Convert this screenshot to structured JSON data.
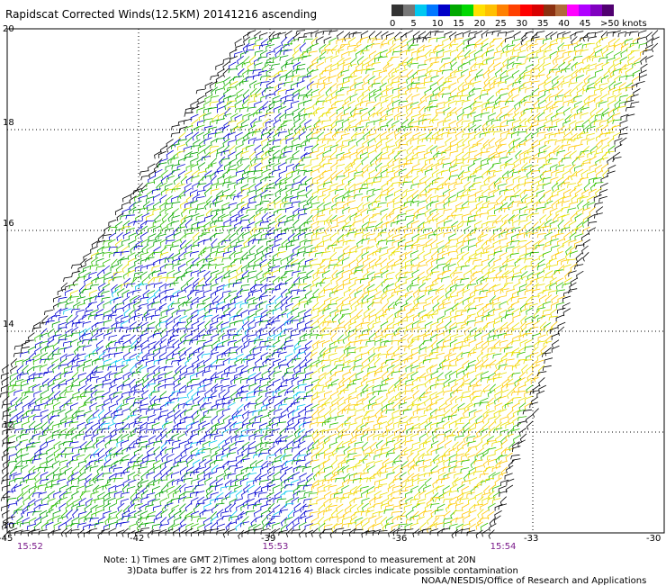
{
  "title": "Rapidscat Corrected Winds(12.5KM) 20141216 ascending",
  "legend": {
    "colors": [
      "#333333",
      "#777777",
      "#00c8f0",
      "#0077ff",
      "#0000c8",
      "#00a800",
      "#00d800",
      "#ffe000",
      "#ffc000",
      "#ff8000",
      "#ff4000",
      "#ff0000",
      "#d80000",
      "#8b3010",
      "#b06a3a",
      "#ff00ff",
      "#b000ff",
      "#8000c0",
      "#500070"
    ],
    "labels": [
      "0",
      "5",
      "10",
      "15",
      "20",
      "25",
      "30",
      "35",
      "40",
      "45",
      ">50 knots"
    ],
    "label_values": [
      0,
      5,
      10,
      15,
      20,
      25,
      30,
      35,
      40,
      45,
      50
    ]
  },
  "axes": {
    "lat_labels": [
      "20",
      "18",
      "16",
      "14",
      "12",
      "10"
    ],
    "lat_values": [
      20,
      18,
      16,
      14,
      12,
      10
    ],
    "lon_labels": [
      "-45",
      "-42",
      "-39",
      "-36",
      "-33",
      "-30"
    ],
    "lon_values": [
      -45,
      -42,
      -39,
      -36,
      -33,
      -30
    ]
  },
  "times": [
    {
      "label": "15:52",
      "lon": -45
    },
    {
      "label": "15:53",
      "lon": -39.4
    },
    {
      "label": "15:54",
      "lon": -34.2
    }
  ],
  "notes": {
    "line1": "Note: 1) Times are GMT 2)Times along bottom correspond to measurement at 20N",
    "line2": "3)Data buffer is 22 hrs from 20141216 4) Black circles indicate possible contamination",
    "line3": "NOAA/NESDIS/Office of Research and Applications"
  },
  "swath": {
    "corners": [
      [
        -39.5,
        20.0
      ],
      [
        -30.0,
        20.0
      ],
      [
        -33.8,
        10.0
      ],
      [
        -45.0,
        10.0
      ],
      [
        -45.0,
        13.3
      ]
    ]
  },
  "wind_field": {
    "zones": [
      {
        "name": "northwest",
        "lon_range": [
          -45,
          -38
        ],
        "lat_range": [
          14.5,
          20
        ],
        "speed_knots": 17,
        "direction": "northeasterly"
      },
      {
        "name": "central-west",
        "lon_range": [
          -43,
          -38.5
        ],
        "lat_range": [
          11,
          15
        ],
        "speed_knots": 13,
        "direction": "northeasterly"
      },
      {
        "name": "southwest",
        "lon_range": [
          -45,
          -41
        ],
        "lat_range": [
          10,
          11.5
        ],
        "speed_knots": 16,
        "direction": "northeasterly"
      },
      {
        "name": "east",
        "lon_range": [
          -38,
          -30
        ],
        "lat_range": [
          10,
          20
        ],
        "speed_knots": 22,
        "direction": "east-northeasterly"
      }
    ]
  }
}
